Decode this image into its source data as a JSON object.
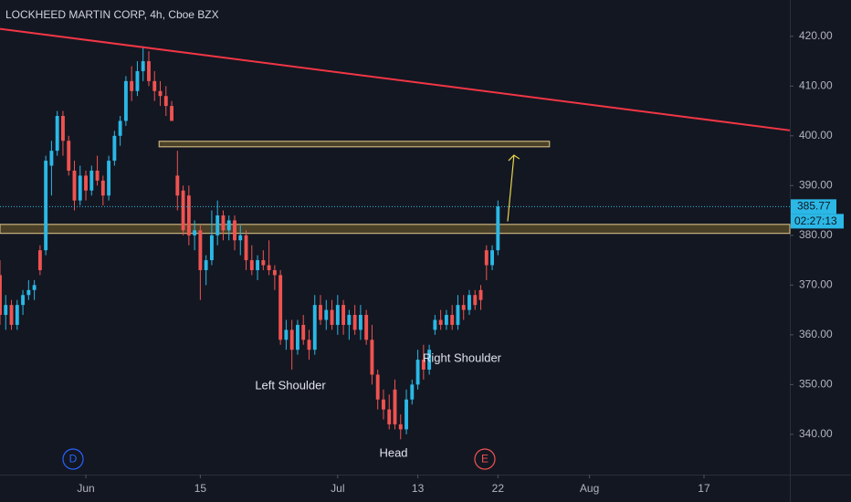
{
  "chart_data": {
    "type": "candlestick",
    "title": "LOCKHEED MARTIN CORP, 4h, Cboe BZX",
    "open": [
      372,
      364,
      366,
      362,
      366,
      368,
      369,
      377,
      377,
      394,
      397,
      404,
      399,
      393,
      387,
      392,
      389,
      393,
      391,
      388,
      395,
      400,
      403,
      411,
      409,
      413,
      415,
      411,
      409,
      408,
      406,
      392,
      389,
      388,
      380,
      381,
      373,
      375,
      380,
      384,
      381,
      383,
      379,
      380,
      375,
      373,
      375,
      374,
      373,
      372,
      359,
      361,
      357,
      362,
      359,
      357,
      366,
      363,
      365,
      362,
      366,
      362,
      364,
      361,
      364,
      359,
      352,
      347,
      345,
      349,
      342,
      341,
      347,
      350,
      355,
      353,
      361,
      363,
      362,
      364,
      362,
      366,
      365,
      368,
      369,
      377,
      374,
      377
    ],
    "high": [
      375,
      368,
      367,
      367,
      369,
      371,
      371,
      378,
      396,
      399,
      405,
      405,
      400,
      395,
      394,
      393,
      394,
      396,
      392,
      396,
      401,
      404,
      412,
      414,
      415,
      418,
      417,
      413,
      411,
      410,
      407,
      397,
      390,
      390,
      383,
      382,
      376,
      385,
      387,
      385,
      384,
      384,
      382,
      381,
      378,
      376,
      377,
      379,
      374,
      373,
      363,
      363,
      363,
      364,
      361,
      368,
      368,
      367,
      367,
      368,
      367,
      365,
      366,
      366,
      365,
      362,
      353,
      349,
      348,
      351,
      344,
      349,
      351,
      357,
      358,
      358,
      364,
      365,
      365,
      366,
      368,
      368,
      369,
      369,
      370,
      378,
      378,
      387
    ],
    "low": [
      362,
      361,
      361,
      361,
      364,
      367,
      367,
      372,
      376,
      388,
      396,
      396,
      392,
      385,
      386,
      387,
      388,
      390,
      386,
      387,
      394,
      398,
      402,
      407,
      408,
      411,
      410,
      407,
      406,
      404,
      403,
      385,
      380,
      378,
      377,
      367,
      370,
      374,
      378,
      379,
      379,
      377,
      376,
      373,
      372,
      371,
      373,
      372,
      369,
      358,
      357,
      353,
      356,
      358,
      355,
      356,
      362,
      361,
      361,
      360,
      360,
      359,
      360,
      359,
      358,
      350,
      345,
      343,
      341,
      341,
      339,
      340,
      346,
      349,
      351,
      352,
      360,
      361,
      361,
      361,
      361,
      363,
      364,
      365,
      365,
      371,
      373,
      376
    ],
    "close": [
      364,
      366,
      362,
      366,
      368,
      369,
      370,
      373,
      395,
      397,
      404,
      399,
      393,
      387,
      392,
      389,
      393,
      391,
      388,
      395,
      400,
      403,
      411,
      409,
      413,
      415,
      411,
      409,
      408,
      406,
      403,
      388,
      381,
      380,
      381,
      373,
      375,
      380,
      384,
      381,
      383,
      379,
      380,
      375,
      373,
      375,
      374,
      373,
      372,
      359,
      361,
      357,
      362,
      359,
      357,
      366,
      363,
      365,
      362,
      366,
      362,
      364,
      361,
      364,
      359,
      352,
      347,
      345,
      342,
      342,
      341,
      347,
      350,
      355,
      353,
      357,
      363,
      362,
      364,
      362,
      366,
      365,
      368,
      366,
      367,
      374,
      377,
      385.77
    ],
    "up_color": "#2bb8e6",
    "down_color": "#ef5350",
    "xlim": [
      0,
      138
    ],
    "xticks": [
      {
        "value": 15,
        "label": "Jun"
      },
      {
        "value": 35,
        "label": "15"
      },
      {
        "value": 59,
        "label": "Jul"
      },
      {
        "value": 73,
        "label": "13"
      },
      {
        "value": 87,
        "label": "22"
      },
      {
        "value": 103,
        "label": "Aug"
      },
      {
        "value": 123,
        "label": "17"
      }
    ],
    "ylim": [
      331.9,
      427.3
    ],
    "yticks": [
      {
        "value": 340,
        "label": "340.00"
      },
      {
        "value": 350,
        "label": "350.00"
      },
      {
        "value": 360,
        "label": "360.00"
      },
      {
        "value": 370,
        "label": "370.00"
      },
      {
        "value": 380,
        "label": "380.00"
      },
      {
        "value": 390,
        "label": "390.00"
      },
      {
        "value": 400,
        "label": "400.00"
      },
      {
        "value": 410,
        "label": "410.00"
      },
      {
        "value": 420,
        "label": "420.00"
      }
    ],
    "last_price": 385.77,
    "countdown": "02:27:13",
    "trendline": {
      "x": [
        0,
        138
      ],
      "y": [
        421.5,
        401.1
      ],
      "color": "#f23645"
    },
    "zones": [
      {
        "x": [
          27.8,
          96
        ],
        "y": [
          397.8,
          398.9
        ]
      },
      {
        "x": [
          0,
          138
        ],
        "y": [
          380.4,
          382.2
        ]
      }
    ],
    "arrow": {
      "x": [
        88.7,
        89.8
      ],
      "y": [
        382.8,
        396.1
      ],
      "color": "#e8d44d"
    },
    "annotations": [
      "Left Shoulder",
      "Head",
      "Right Shoulder"
    ],
    "events": [
      "D",
      "E"
    ]
  }
}
